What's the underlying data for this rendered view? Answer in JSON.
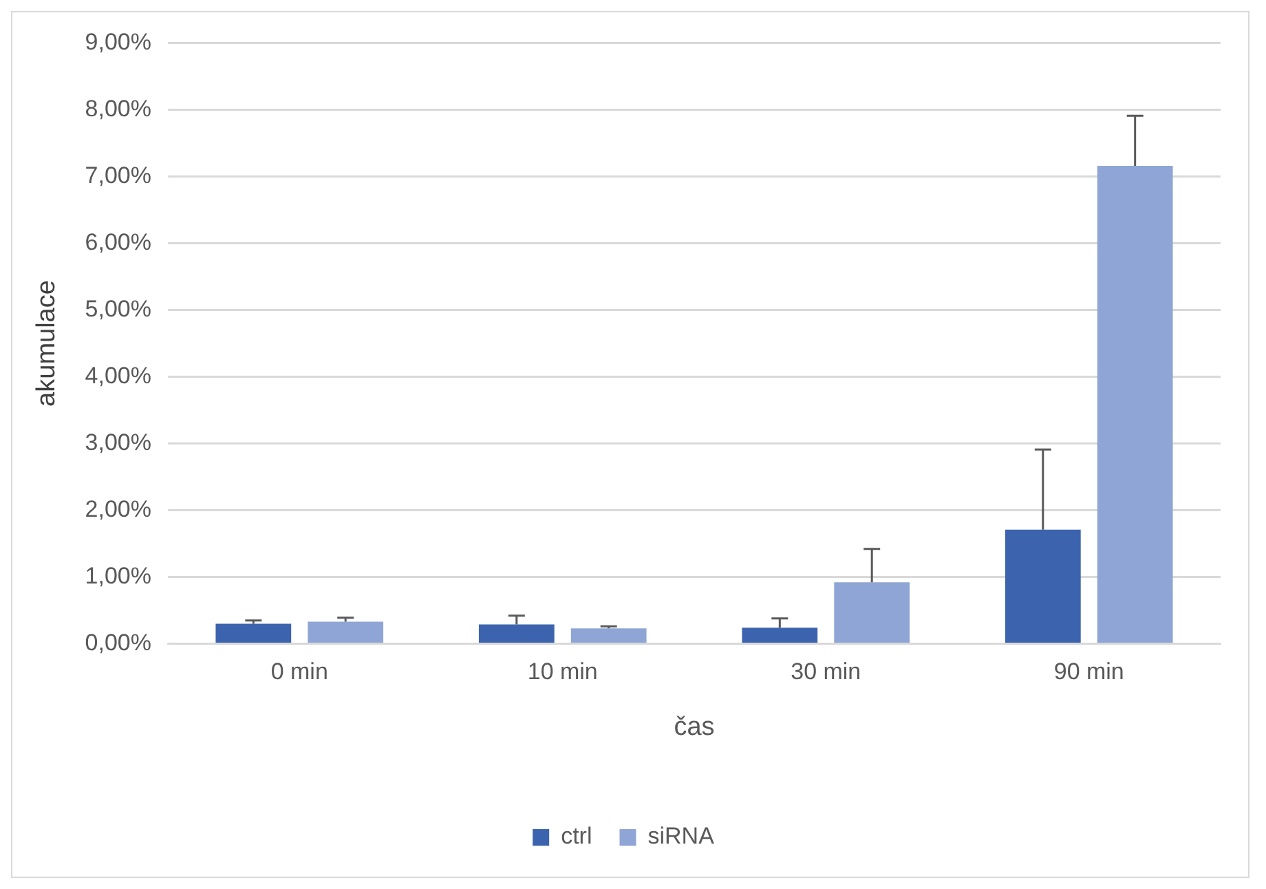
{
  "chart_data": {
    "type": "bar",
    "xlabel": "čas",
    "ylabel": "akumulace",
    "categories": [
      "0 min",
      "10 min",
      "30 min",
      "90 min"
    ],
    "series": [
      {
        "name": "ctrl",
        "color": "#3c64ae",
        "values": [
          0.3,
          0.29,
          0.24,
          1.71
        ],
        "errors": [
          [
            0.3,
            0.35
          ],
          [
            0.29,
            0.42
          ],
          [
            0.24,
            0.38
          ],
          [
            1.71,
            2.91
          ]
        ]
      },
      {
        "name": "siRNA",
        "color": "#8fa5d5",
        "values": [
          0.33,
          0.23,
          0.92,
          7.16
        ],
        "errors": [
          [
            0.33,
            0.39
          ],
          [
            0.23,
            0.26
          ],
          [
            0.92,
            1.42
          ],
          [
            7.16,
            7.91
          ]
        ]
      }
    ],
    "ylim": [
      0,
      9
    ],
    "yticks": [
      {
        "value": 0,
        "label": "0,00%"
      },
      {
        "value": 1,
        "label": "1,00%"
      },
      {
        "value": 2,
        "label": "2,00%"
      },
      {
        "value": 3,
        "label": "3,00%"
      },
      {
        "value": 4,
        "label": "4,00%"
      },
      {
        "value": 5,
        "label": "5,00%"
      },
      {
        "value": 6,
        "label": "6,00%"
      },
      {
        "value": 7,
        "label": "7,00%"
      },
      {
        "value": 8,
        "label": "8,00%"
      },
      {
        "value": 9,
        "label": "9,00%"
      }
    ],
    "grid": "y",
    "legend": "bottom"
  }
}
